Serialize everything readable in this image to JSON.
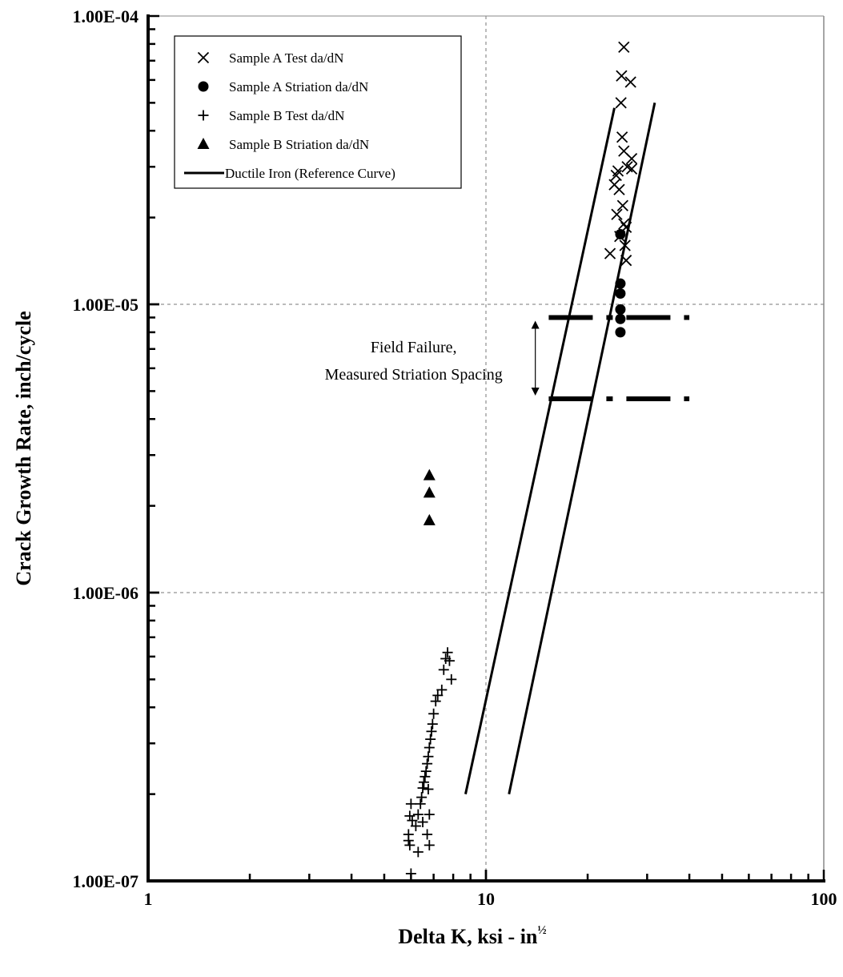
{
  "chart_data": {
    "type": "scatter",
    "xlabel": "Delta K, ksi - in",
    "xlabel_superscript": "½",
    "ylabel": "Crack Growth Rate, inch/cycle",
    "x_scale": "log",
    "y_scale": "log",
    "xlim": [
      1,
      100
    ],
    "ylim": [
      1e-07,
      0.0001
    ],
    "x_ticks": [
      {
        "value": 1,
        "label": "1"
      },
      {
        "value": 10,
        "label": "10"
      },
      {
        "value": 100,
        "label": "100"
      }
    ],
    "y_ticks": [
      {
        "value": 1e-07,
        "label": "1.00E-07"
      },
      {
        "value": 1e-06,
        "label": "1.00E-06"
      },
      {
        "value": 1e-05,
        "label": "1.00E-05"
      },
      {
        "value": 0.0001,
        "label": "1.00E-04"
      }
    ],
    "grid": {
      "major": true,
      "style": "dashed"
    },
    "legend": {
      "position": "top-left"
    },
    "series": [
      {
        "name": "Sample A Test da/dN",
        "marker": "x",
        "points": [
          [
            25.6,
            7.8e-05
          ],
          [
            25.2,
            6.2e-05
          ],
          [
            26.8,
            5.9e-05
          ],
          [
            25.1,
            5e-05
          ],
          [
            25.3,
            3.8e-05
          ],
          [
            25.6,
            3.4e-05
          ],
          [
            27.0,
            3.2e-05
          ],
          [
            26.2,
            3e-05
          ],
          [
            27.0,
            2.95e-05
          ],
          [
            24.6,
            2.9e-05
          ],
          [
            24.3,
            2.8e-05
          ],
          [
            24.0,
            2.6e-05
          ],
          [
            24.8,
            2.5e-05
          ],
          [
            25.4,
            2.2e-05
          ],
          [
            24.4,
            2.05e-05
          ],
          [
            25.6,
            1.9e-05
          ],
          [
            26.0,
            1.85e-05
          ],
          [
            24.9,
            1.72e-05
          ],
          [
            25.8,
            1.6e-05
          ],
          [
            23.3,
            1.5e-05
          ],
          [
            26.0,
            1.42e-05
          ]
        ]
      },
      {
        "name": "Sample A Striation da/dN",
        "marker": "circle",
        "points": [
          [
            25.0,
            1.75e-05
          ],
          [
            25.0,
            1.18e-05
          ],
          [
            25.0,
            1.09e-05
          ],
          [
            25.0,
            9.6e-06
          ],
          [
            25.0,
            8.9e-06
          ],
          [
            25.0,
            8e-06
          ]
        ]
      },
      {
        "name": "Sample B Test da/dN",
        "marker": "plus",
        "points": [
          [
            7.7,
            6.2e-07
          ],
          [
            7.6,
            5.9e-07
          ],
          [
            7.8,
            5.8e-07
          ],
          [
            7.5,
            5.4e-07
          ],
          [
            7.9,
            5e-07
          ],
          [
            7.4,
            4.6e-07
          ],
          [
            7.2,
            4.4e-07
          ],
          [
            7.1,
            4.2e-07
          ],
          [
            7.0,
            3.8e-07
          ],
          [
            6.95,
            3.5e-07
          ],
          [
            6.9,
            3.3e-07
          ],
          [
            6.85,
            3.1e-07
          ],
          [
            6.8,
            2.9e-07
          ],
          [
            6.75,
            2.7e-07
          ],
          [
            6.7,
            2.55e-07
          ],
          [
            6.65,
            2.4e-07
          ],
          [
            6.6,
            2.3e-07
          ],
          [
            6.55,
            2.2e-07
          ],
          [
            6.5,
            2.1e-07
          ],
          [
            6.75,
            2.08e-07
          ],
          [
            6.45,
            1.95e-07
          ],
          [
            6.4,
            1.85e-07
          ],
          [
            6.0,
            1.85e-07
          ],
          [
            5.95,
            1.68e-07
          ],
          [
            6.05,
            1.62e-07
          ],
          [
            6.3,
            1.7e-07
          ],
          [
            6.8,
            1.7e-07
          ],
          [
            6.5,
            1.6e-07
          ],
          [
            6.2,
            1.55e-07
          ],
          [
            5.9,
            1.45e-07
          ],
          [
            6.7,
            1.45e-07
          ],
          [
            5.9,
            1.38e-07
          ],
          [
            6.8,
            1.33e-07
          ],
          [
            5.95,
            1.33e-07
          ],
          [
            6.3,
            1.26e-07
          ],
          [
            6.0,
            1.06e-07
          ]
        ]
      },
      {
        "name": "Sample B Striation da/dN",
        "marker": "triangle",
        "points": [
          [
            6.8,
            2.55e-06
          ],
          [
            6.8,
            2.22e-06
          ],
          [
            6.8,
            1.78e-06
          ]
        ]
      },
      {
        "name": "Ductile Iron (Reference Curve)",
        "marker": "line",
        "lines": [
          [
            [
              8.7,
              2e-07
            ],
            [
              24.0,
              4.8e-05
            ]
          ],
          [
            [
              11.7,
              2e-07
            ],
            [
              31.6,
              5e-05
            ]
          ]
        ]
      }
    ],
    "annotations": [
      {
        "text_lines": [
          "Field Failure,",
          "Measured Striation Spacing"
        ],
        "band_upper": 9e-06,
        "band_lower": 4.7e-06,
        "x_range": [
          12.0,
          40.0
        ],
        "arrow_x": 14.0
      }
    ]
  }
}
